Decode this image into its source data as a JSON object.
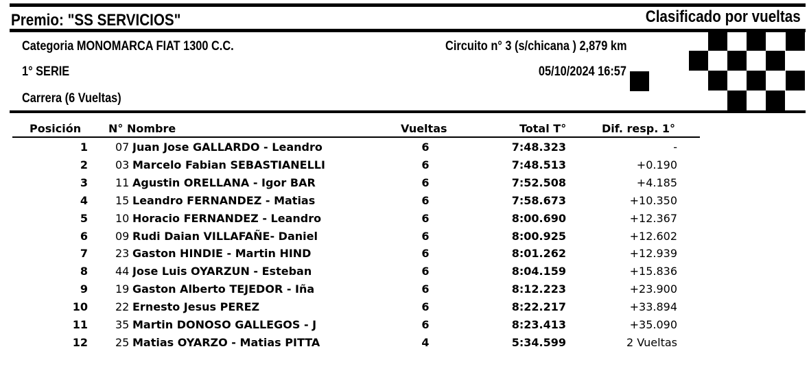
{
  "header": {
    "prize": "Premio: \"SS SERVICIOS\"",
    "classification": "Clasificado por vueltas",
    "category": "Categoria MONOMARCA FIAT 1300 C.C.",
    "circuit": "Circuito n° 3 (s/chicana ) 2,879 km",
    "series": "1° SERIE",
    "datetime": "05/10/2024 16:57",
    "race": "Carrera (6 Vueltas)",
    "flag_icon": "checkered-flag"
  },
  "table": {
    "columns": {
      "position": "Posición",
      "number_name": "N° Nombre",
      "laps": "Vueltas",
      "total": "Total T°",
      "diff": "Dif. resp. 1°"
    },
    "rows": [
      {
        "pos": "1",
        "num": "07",
        "name": "Juan Jose GALLARDO -  Leandro",
        "laps": "6",
        "total": "7:48.323",
        "diff": "-"
      },
      {
        "pos": "2",
        "num": "03",
        "name": "Marcelo Fabian  SEBASTIANELLI",
        "laps": "6",
        "total": "7:48.513",
        "diff": "+0.190"
      },
      {
        "pos": "3",
        "num": "11",
        "name": "Agustin ORELLANA -  Igor BAR",
        "laps": "6",
        "total": "7:52.508",
        "diff": "+4.185"
      },
      {
        "pos": "4",
        "num": "15",
        "name": "Leandro FERNANDEZ -  Matias",
        "laps": "6",
        "total": "7:58.673",
        "diff": "+10.350"
      },
      {
        "pos": "5",
        "num": "10",
        "name": "Horacio FERNANDEZ - Leandro",
        "laps": "6",
        "total": "8:00.690",
        "diff": "+12.367"
      },
      {
        "pos": "6",
        "num": "09",
        "name": "Rudi Daian VILLAFAÑE- Daniel",
        "laps": "6",
        "total": "8:00.925",
        "diff": "+12.602"
      },
      {
        "pos": "7",
        "num": "23",
        "name": "Gaston HINDIE -  Martin HIND",
        "laps": "6",
        "total": "8:01.262",
        "diff": "+12.939"
      },
      {
        "pos": "8",
        "num": "44",
        "name": "Jose Luis OYARZUN -  Esteban",
        "laps": "6",
        "total": "8:04.159",
        "diff": "+15.836"
      },
      {
        "pos": "9",
        "num": "19",
        "name": "Gaston Alberto TEJEDOR -  Iña",
        "laps": "6",
        "total": "8:12.223",
        "diff": "+23.900"
      },
      {
        "pos": "10",
        "num": "22",
        "name": "Ernesto Jesus  PEREZ",
        "laps": "6",
        "total": "8:22.217",
        "diff": "+33.894"
      },
      {
        "pos": "11",
        "num": "35",
        "name": "Martin DONOSO GALLEGOS -  J",
        "laps": "6",
        "total": "8:23.413",
        "diff": "+35.090"
      },
      {
        "pos": "12",
        "num": "25",
        "name": "Matias OYARZO -  Matias PITTA",
        "laps": "4",
        "total": "5:34.599",
        "diff": "2 Vueltas"
      }
    ]
  }
}
